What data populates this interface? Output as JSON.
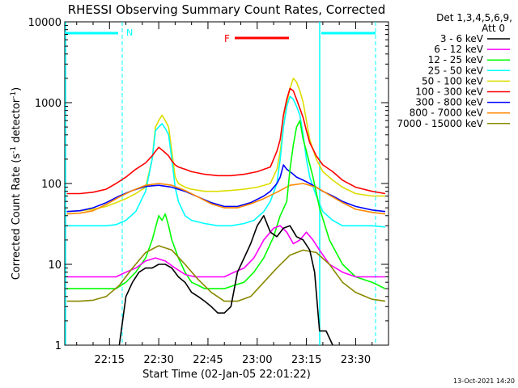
{
  "chart_data": {
    "type": "line",
    "title": "RHESSI Observing Summary Count Rates, Corrected",
    "xlabel": "Start Time (02-Jan-05 22:01:22)",
    "ylabel": "Corrected Count Rate (s",
    "ylabel_exp1": "-1",
    "ylabel_mid": " detector",
    "ylabel_exp2": "-1",
    "ylabel_end": ")",
    "x_unit": "minutes since 22:00",
    "xlim": [
      1.37,
      100
    ],
    "ylim": [
      1,
      10000
    ],
    "yscale": "log",
    "x_ticks": [
      {
        "v": 15,
        "label": "22:15"
      },
      {
        "v": 30,
        "label": "22:30"
      },
      {
        "v": 45,
        "label": "22:45"
      },
      {
        "v": 60,
        "label": "23:00"
      },
      {
        "v": 75,
        "label": "23:15"
      },
      {
        "v": 90,
        "label": "23:30"
      }
    ],
    "y_ticks": [
      {
        "v": 1,
        "label": "1"
      },
      {
        "v": 10,
        "label": "10"
      },
      {
        "v": 100,
        "label": "100"
      },
      {
        "v": 1000,
        "label": "1000"
      },
      {
        "v": 10000,
        "label": "10000"
      }
    ],
    "legend_header": [
      "Det 1,3,4,5,6,9,",
      "Att 0"
    ],
    "annotations": {
      "night_label": "N",
      "flare_label": "F",
      "footer_date": "13-Oct-2021 14:20"
    },
    "series": [
      {
        "name": "3 - 6 keV",
        "color": "#000000",
        "x": [
          18,
          20,
          22,
          24,
          26,
          28,
          30,
          32,
          34,
          36,
          38,
          40,
          42,
          44,
          46,
          48,
          50,
          52,
          54,
          56,
          58,
          60,
          62,
          64,
          66,
          68,
          70,
          72,
          74,
          76,
          77.5,
          79,
          81,
          83
        ],
        "y": [
          1,
          4,
          6,
          8,
          9,
          9,
          10,
          10,
          9,
          7,
          6,
          4.5,
          4,
          3.5,
          3,
          2.5,
          2.5,
          3,
          8,
          12,
          18,
          30,
          40,
          25,
          22,
          28,
          30,
          22,
          20,
          15,
          8,
          1.5,
          1.5,
          1
        ]
      },
      {
        "name": "6 - 12 keV",
        "color": "#ff00ff",
        "x": [
          2,
          6,
          10,
          14,
          17,
          20,
          23,
          26,
          29,
          32,
          35,
          38,
          41,
          44,
          47,
          50,
          53,
          56,
          59,
          62,
          65,
          67,
          69,
          71,
          73,
          75,
          77,
          79,
          82,
          86,
          90,
          95,
          99
        ],
        "y": [
          7,
          7,
          7,
          7,
          7,
          8,
          9,
          11,
          12,
          11,
          9,
          7.5,
          7,
          7,
          7,
          7,
          8,
          9,
          12,
          20,
          28,
          30,
          25,
          18,
          20,
          25,
          20,
          15,
          10,
          8,
          7,
          7,
          7
        ]
      },
      {
        "name": "12 - 25 keV",
        "color": "#00ff00",
        "x": [
          2,
          6,
          10,
          14,
          17,
          20,
          23,
          26,
          28,
          30,
          31,
          32,
          33,
          34,
          36,
          38,
          40,
          42,
          44,
          47,
          50,
          53,
          56,
          59,
          62,
          65,
          67,
          69,
          70,
          71,
          72,
          73,
          74,
          75,
          77,
          79,
          82,
          86,
          90,
          95,
          99
        ],
        "y": [
          5,
          5,
          5,
          5,
          5,
          6,
          8,
          12,
          20,
          40,
          35,
          42,
          30,
          20,
          12,
          8,
          6,
          5.5,
          5,
          5,
          5,
          5.5,
          6,
          8,
          12,
          22,
          40,
          60,
          150,
          300,
          500,
          600,
          350,
          250,
          120,
          50,
          20,
          10,
          7,
          6,
          5
        ]
      },
      {
        "name": "25 - 50 keV",
        "color": "#00ffff",
        "x": [
          2,
          6,
          10,
          14,
          17,
          20,
          23,
          26,
          28,
          29,
          30,
          31,
          32,
          33,
          34,
          35,
          36,
          38,
          40,
          44,
          48,
          52,
          56,
          59,
          62,
          64,
          66,
          67,
          68,
          69,
          70,
          71,
          72,
          73,
          74,
          75,
          76,
          78,
          80,
          83,
          86,
          90,
          95,
          99
        ],
        "y": [
          30,
          30,
          30,
          30,
          31,
          35,
          45,
          80,
          200,
          450,
          500,
          550,
          480,
          400,
          200,
          90,
          60,
          40,
          35,
          32,
          30,
          30,
          32,
          35,
          45,
          60,
          100,
          200,
          500,
          900,
          1200,
          1100,
          900,
          700,
          400,
          200,
          120,
          70,
          45,
          35,
          30,
          30,
          30,
          29
        ]
      },
      {
        "name": "50 - 100 keV",
        "color": "#dddd00",
        "x": [
          2,
          6,
          10,
          14,
          17,
          20,
          23,
          26,
          28,
          29,
          30,
          31,
          32,
          33,
          34,
          35,
          36,
          38,
          40,
          44,
          48,
          52,
          56,
          60,
          64,
          66,
          67,
          68,
          69,
          70,
          71,
          72,
          73,
          74,
          75,
          76,
          78,
          80,
          83,
          86,
          90,
          95,
          99
        ],
        "y": [
          45,
          46,
          48,
          52,
          58,
          65,
          75,
          90,
          200,
          500,
          600,
          700,
          600,
          500,
          250,
          120,
          100,
          90,
          85,
          80,
          80,
          82,
          85,
          90,
          100,
          150,
          250,
          500,
          1000,
          1500,
          2000,
          1800,
          1400,
          1000,
          600,
          350,
          200,
          140,
          110,
          90,
          75,
          70,
          70
        ]
      },
      {
        "name": "100 - 300 keV",
        "color": "#ff0000",
        "x": [
          2,
          6,
          10,
          14,
          17,
          20,
          23,
          26,
          28,
          29,
          30,
          31,
          32,
          33,
          34,
          35,
          36,
          38,
          40,
          44,
          48,
          52,
          56,
          60,
          64,
          66,
          67,
          68,
          69,
          70,
          71,
          72,
          73,
          74,
          75,
          76,
          78,
          80,
          83,
          86,
          90,
          95,
          99
        ],
        "y": [
          75,
          75,
          78,
          85,
          100,
          120,
          150,
          180,
          220,
          250,
          280,
          260,
          240,
          220,
          190,
          170,
          160,
          150,
          140,
          130,
          125,
          125,
          130,
          140,
          160,
          250,
          350,
          700,
          1100,
          1500,
          1400,
          1100,
          850,
          650,
          450,
          320,
          220,
          170,
          140,
          110,
          90,
          80,
          75
        ]
      },
      {
        "name": "300 - 800 keV",
        "color": "#0000ff",
        "x": [
          2,
          6,
          10,
          14,
          18,
          22,
          26,
          30,
          34,
          38,
          42,
          46,
          50,
          54,
          58,
          62,
          64,
          66,
          67,
          68,
          69,
          70,
          71,
          72,
          74,
          76,
          78,
          80,
          83,
          86,
          90,
          95,
          99
        ],
        "y": [
          45,
          46,
          50,
          58,
          70,
          82,
          92,
          95,
          90,
          80,
          68,
          58,
          52,
          52,
          58,
          70,
          80,
          100,
          120,
          170,
          150,
          140,
          130,
          120,
          110,
          100,
          90,
          80,
          70,
          60,
          52,
          47,
          45
        ]
      },
      {
        "name": "800 - 7000 keV",
        "color": "#ff8800",
        "x": [
          2,
          6,
          10,
          14,
          18,
          22,
          26,
          30,
          34,
          38,
          42,
          46,
          50,
          54,
          58,
          62,
          66,
          70,
          74,
          78,
          82,
          86,
          90,
          95,
          99
        ],
        "y": [
          42,
          43,
          46,
          55,
          68,
          82,
          95,
          100,
          95,
          82,
          68,
          56,
          50,
          50,
          56,
          65,
          78,
          95,
          100,
          90,
          72,
          58,
          48,
          44,
          42
        ]
      },
      {
        "name": "7000 - 15000 keV",
        "color": "#888800",
        "x": [
          2,
          6,
          10,
          14,
          18,
          22,
          26,
          30,
          34,
          38,
          42,
          46,
          50,
          54,
          58,
          62,
          66,
          70,
          74,
          78,
          82,
          86,
          90,
          95,
          99
        ],
        "y": [
          3.5,
          3.5,
          3.6,
          4,
          5.5,
          9,
          14,
          17,
          15,
          10,
          6.5,
          4.5,
          3.5,
          3.5,
          4,
          6,
          9,
          13,
          15,
          14,
          10,
          6,
          4.5,
          3.7,
          3.5
        ]
      }
    ]
  }
}
